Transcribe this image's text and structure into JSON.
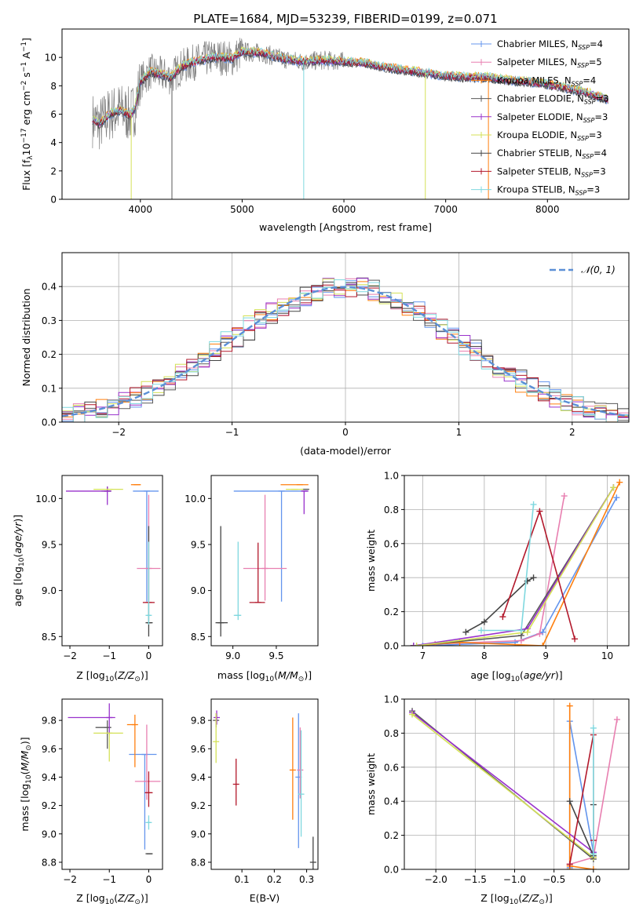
{
  "figure": {
    "title": "PLATE=1684, MJD=53239, FIBERID=0199, z=0.071"
  },
  "colors": {
    "Chabrier MILES": "#6495ed",
    "Salpeter MILES": "#e87fb0",
    "Kroupa MILES": "#ff7f0e",
    "Chabrier ELODIE": "#5a5a5a",
    "Salpeter ELODIE": "#9932cc",
    "Kroupa ELODIE": "#d4e157",
    "Chabrier STELIB": "#444444",
    "Salpeter STELIB": "#b2182b",
    "Kroupa STELIB": "#7fd8df",
    "data": "#808080",
    "gaussian": "#5b8fd6",
    "grid": "#b0b0b0"
  },
  "chart_data": [
    {
      "id": "spectrum",
      "type": "line",
      "xlabel": "wavelength [Angstrom, rest frame]",
      "ylabel": "Flux [fλ10⁻¹⁷ erg cm⁻² s⁻¹ A⁻¹]",
      "xlim": [
        3230,
        8800
      ],
      "ylim": [
        0,
        12
      ],
      "xticks": [
        4000,
        5000,
        6000,
        7000,
        8000
      ],
      "yticks": [
        0,
        2,
        4,
        6,
        8,
        10
      ],
      "grid": false,
      "legend_position": "top-right",
      "legend": [
        {
          "model": "Chabrier MILES",
          "label": "Chabrier MILES, N",
          "nssp": "4"
        },
        {
          "model": "Salpeter MILES",
          "label": "Salpeter MILES, N",
          "nssp": "5"
        },
        {
          "model": "Kroupa MILES",
          "label": "Kroupa MILES, N",
          "nssp": "4"
        },
        {
          "model": "Chabrier ELODIE",
          "label": "Chabrier ELODIE, N",
          "nssp": "3"
        },
        {
          "model": "Salpeter ELODIE",
          "label": "Salpeter ELODIE, N",
          "nssp": "3"
        },
        {
          "model": "Kroupa ELODIE",
          "label": "Kroupa ELODIE, N",
          "nssp": "3"
        },
        {
          "model": "Chabrier STELIB",
          "label": "Chabrier STELIB, N",
          "nssp": "4"
        },
        {
          "model": "Salpeter STELIB",
          "label": "Salpeter STELIB, N",
          "nssp": "3"
        },
        {
          "model": "Kroupa STELIB",
          "label": "Kroupa STELIB, N",
          "nssp": "3"
        }
      ],
      "continuum": [
        [
          3530,
          5.6
        ],
        [
          3600,
          5.3
        ],
        [
          3700,
          6.0
        ],
        [
          3800,
          6.3
        ],
        [
          3900,
          5.9
        ],
        [
          3950,
          6.5
        ],
        [
          4000,
          8.3
        ],
        [
          4100,
          9.0
        ],
        [
          4200,
          8.8
        ],
        [
          4300,
          8.6
        ],
        [
          4400,
          9.3
        ],
        [
          4500,
          9.6
        ],
        [
          4600,
          9.8
        ],
        [
          4700,
          10.0
        ],
        [
          4800,
          10.0
        ],
        [
          4900,
          9.9
        ],
        [
          5000,
          10.4
        ],
        [
          5200,
          10.3
        ],
        [
          5400,
          9.9
        ],
        [
          5600,
          9.7
        ],
        [
          5800,
          9.8
        ],
        [
          6000,
          9.7
        ],
        [
          6200,
          9.6
        ],
        [
          6400,
          9.3
        ],
        [
          6600,
          9.1
        ],
        [
          6800,
          8.9
        ],
        [
          7000,
          8.7
        ],
        [
          7200,
          8.6
        ],
        [
          7400,
          8.6
        ],
        [
          7600,
          8.4
        ],
        [
          7800,
          8.3
        ],
        [
          8000,
          8.1
        ],
        [
          8200,
          7.8
        ],
        [
          8400,
          7.5
        ],
        [
          8600,
          7.0
        ]
      ]
    },
    {
      "id": "residuals",
      "type": "histogram",
      "xlabel": "(data-model)/error",
      "ylabel": "Normed distribution",
      "xlim": [
        -2.5,
        2.5
      ],
      "ylim": [
        0,
        0.5
      ],
      "xticks": [
        -2,
        -1,
        0,
        1,
        2
      ],
      "yticks": [
        0.0,
        0.1,
        0.2,
        0.3,
        0.4
      ],
      "grid": true,
      "legend_position": "top-right",
      "gaussian_label": "𝒩(0, 1)"
    },
    {
      "id": "age_vs_z",
      "type": "scatter",
      "xlabel": "Z [log₁₀(Z/Z⊙)]",
      "ylabel": "age  [log₁₀(age/yr)]",
      "xlim": [
        -2.2,
        0.35
      ],
      "ylim": [
        8.4,
        10.25
      ],
      "xticks": [
        -2,
        -1,
        0
      ],
      "yticks": [
        8.5,
        9.0,
        9.5,
        10.0
      ],
      "points": [
        {
          "model": "Chabrier MILES",
          "x": -0.05,
          "xerr": [
            0.35,
            0.3
          ],
          "y": 10.08,
          "yerr": [
            1.2,
            0.0
          ]
        },
        {
          "model": "Salpeter MILES",
          "x": 0.0,
          "xerr": [
            0.3,
            0.3
          ],
          "y": 9.24,
          "yerr": [
            0.35,
            0.8
          ]
        },
        {
          "model": "Kroupa MILES",
          "x": -0.3,
          "xerr": [
            0.15,
            0.1
          ],
          "y": 10.15,
          "yerr": [
            0.0,
            0.0
          ]
        },
        {
          "model": "Chabrier ELODIE",
          "x": -1.05,
          "xerr": [
            0.15,
            0.1
          ],
          "y": 10.08,
          "yerr": [
            0.0,
            0.05
          ]
        },
        {
          "model": "Salpeter ELODIE",
          "x": -1.05,
          "xerr": [
            1.05,
            0.1
          ],
          "y": 10.08,
          "yerr": [
            0.15,
            0.05
          ]
        },
        {
          "model": "Kroupa ELODIE",
          "x": -1.0,
          "xerr": [
            0.4,
            0.35
          ],
          "y": 10.1,
          "yerr": [
            0.0,
            0.0
          ]
        },
        {
          "model": "Chabrier STELIB",
          "x": 0.0,
          "xerr": [
            0.05,
            0.1
          ],
          "y": 8.65,
          "yerr": [
            0.15,
            1.05
          ]
        },
        {
          "model": "Salpeter STELIB",
          "x": 0.0,
          "xerr": [
            0.15,
            0.15
          ],
          "y": 8.87,
          "yerr": [
            0.0,
            0.0
          ]
        },
        {
          "model": "Kroupa STELIB",
          "x": 0.0,
          "xerr": [
            0.05,
            0.05
          ],
          "y": 8.73,
          "yerr": [
            0.1,
            0.8
          ]
        }
      ]
    },
    {
      "id": "age_vs_mass",
      "type": "scatter",
      "xlabel": "mass [log₁₀(M/M⊙)]",
      "ylabel": "",
      "xlim": [
        8.75,
        9.98
      ],
      "ylim": [
        8.4,
        10.25
      ],
      "xticks": [
        9.0,
        9.5
      ],
      "yticks": [
        8.5,
        9.0,
        9.5,
        10.0
      ],
      "points": [
        {
          "model": "Chabrier MILES",
          "x": 9.56,
          "xerr": [
            0.55,
            0.3
          ],
          "y": 10.08,
          "yerr": [
            1.2,
            0.0
          ]
        },
        {
          "model": "Salpeter MILES",
          "x": 9.37,
          "xerr": [
            0.25,
            0.25
          ],
          "y": 9.24,
          "yerr": [
            0.35,
            0.8
          ]
        },
        {
          "model": "Kroupa MILES",
          "x": 9.77,
          "xerr": [
            0.22,
            0.1
          ],
          "y": 10.15,
          "yerr": [
            0.0,
            0.0
          ]
        },
        {
          "model": "Chabrier ELODIE",
          "x": 9.83,
          "xerr": [
            0.02,
            0.05
          ],
          "y": 10.1,
          "yerr": [
            0.0,
            0.0
          ]
        },
        {
          "model": "Salpeter ELODIE",
          "x": 9.82,
          "xerr": [
            0.02,
            0.05
          ],
          "y": 10.08,
          "yerr": [
            0.25,
            0.0
          ]
        },
        {
          "model": "Kroupa ELODIE",
          "x": 9.71,
          "xerr": [
            0.1,
            0.1
          ],
          "y": 10.1,
          "yerr": [
            0.0,
            0.0
          ]
        },
        {
          "model": "Chabrier STELIB",
          "x": 8.86,
          "xerr": [
            0.06,
            0.08
          ],
          "y": 8.65,
          "yerr": [
            0.15,
            1.05
          ]
        },
        {
          "model": "Salpeter STELIB",
          "x": 9.29,
          "xerr": [
            0.1,
            0.08
          ],
          "y": 8.87,
          "yerr": [
            0.0,
            0.65
          ]
        },
        {
          "model": "Kroupa STELIB",
          "x": 9.06,
          "xerr": [
            0.05,
            0.03
          ],
          "y": 8.73,
          "yerr": [
            0.05,
            0.8
          ]
        }
      ]
    },
    {
      "id": "weight_vs_age",
      "type": "line",
      "xlabel": "age  [log₁₀(age/yr)]",
      "ylabel": "mass weight",
      "xlim": [
        6.7,
        10.35
      ],
      "ylim": [
        0,
        1.0
      ],
      "xticks": [
        7,
        8,
        9,
        10
      ],
      "yticks": [
        0.0,
        0.2,
        0.4,
        0.6,
        0.8,
        1.0
      ],
      "grid": true,
      "series": [
        {
          "model": "Chabrier MILES",
          "x": [
            7.0,
            8.5,
            8.95,
            10.15
          ],
          "y": [
            0.0,
            0.02,
            0.08,
            0.87
          ]
        },
        {
          "model": "Salpeter MILES",
          "x": [
            7.2,
            8.6,
            8.9,
            9.3
          ],
          "y": [
            0.01,
            0.03,
            0.07,
            0.88
          ]
        },
        {
          "model": "Kroupa MILES",
          "x": [
            6.85,
            7.6,
            8.95,
            10.2
          ],
          "y": [
            0.0,
            0.02,
            0.0,
            0.96
          ]
        },
        {
          "model": "Chabrier ELODIE",
          "x": [
            6.85,
            8.6,
            10.1
          ],
          "y": [
            0.0,
            0.06,
            0.93
          ]
        },
        {
          "model": "Salpeter ELODIE",
          "x": [
            6.85,
            8.7,
            10.1
          ],
          "y": [
            0.0,
            0.1,
            0.93
          ]
        },
        {
          "model": "Kroupa ELODIE",
          "x": [
            6.9,
            8.7,
            10.1
          ],
          "y": [
            0.0,
            0.08,
            0.93
          ]
        },
        {
          "model": "Chabrier STELIB",
          "x": [
            7.7,
            8.0,
            8.7,
            8.8
          ],
          "y": [
            0.08,
            0.14,
            0.38,
            0.4
          ]
        },
        {
          "model": "Salpeter STELIB",
          "x": [
            8.3,
            8.9,
            9.47
          ],
          "y": [
            0.17,
            0.79,
            0.04
          ]
        },
        {
          "model": "Kroupa STELIB",
          "x": [
            7.95,
            8.6,
            8.8
          ],
          "y": [
            0.09,
            0.09,
            0.83
          ]
        }
      ]
    },
    {
      "id": "mass_vs_z",
      "type": "scatter",
      "xlabel": "Z [log₁₀(Z/Z⊙)]",
      "ylabel": "mass [log₁₀(M/M⊙)]",
      "xlim": [
        -2.2,
        0.35
      ],
      "ylim": [
        8.75,
        9.95
      ],
      "xticks": [
        -2,
        -1,
        0
      ],
      "yticks": [
        8.8,
        9.0,
        9.2,
        9.4,
        9.6,
        9.8
      ],
      "points": [
        {
          "model": "Chabrier MILES",
          "x": -0.1,
          "xerr": [
            0.4,
            0.3
          ],
          "y": 9.56,
          "yerr": [
            0.67,
            0.0
          ]
        },
        {
          "model": "Salpeter MILES",
          "x": -0.05,
          "xerr": [
            0.3,
            0.35
          ],
          "y": 9.37,
          "yerr": [
            0.13,
            0.4
          ]
        },
        {
          "model": "Kroupa MILES",
          "x": -0.35,
          "xerr": [
            0.2,
            0.0
          ],
          "y": 9.77,
          "yerr": [
            0.3,
            0.07
          ]
        },
        {
          "model": "Chabrier ELODIE",
          "x": -1.05,
          "xerr": [
            0.3,
            0.1
          ],
          "y": 9.75,
          "yerr": [
            0.15,
            0.05
          ]
        },
        {
          "model": "Salpeter ELODIE",
          "x": -1.0,
          "xerr": [
            1.05,
            0.15
          ],
          "y": 9.82,
          "yerr": [
            0.12,
            0.1
          ]
        },
        {
          "model": "Kroupa ELODIE",
          "x": -1.0,
          "xerr": [
            0.4,
            0.35
          ],
          "y": 9.71,
          "yerr": [
            0.2,
            0.0
          ]
        },
        {
          "model": "Chabrier STELIB",
          "x": 0.0,
          "xerr": [
            0.05,
            0.1
          ],
          "y": 8.86,
          "yerr": [
            0.0,
            0.0
          ]
        },
        {
          "model": "Salpeter STELIB",
          "x": 0.0,
          "xerr": [
            0.1,
            0.1
          ],
          "y": 9.29,
          "yerr": [
            0.1,
            0.15
          ]
        },
        {
          "model": "Kroupa STELIB",
          "x": 0.0,
          "xerr": [
            0.05,
            0.05
          ],
          "y": 9.08,
          "yerr": [
            0.05,
            0.05
          ]
        }
      ]
    },
    {
      "id": "mass_vs_ebv",
      "type": "scatter",
      "xlabel": "E(B-V)",
      "ylabel": "",
      "xlim": [
        0.005,
        0.335
      ],
      "ylim": [
        8.75,
        9.95
      ],
      "xticks": [
        0.1,
        0.2,
        0.3
      ],
      "yticks": [
        8.8,
        9.0,
        9.2,
        9.4,
        9.6,
        9.8
      ],
      "points": [
        {
          "model": "Chabrier MILES",
          "x": 0.275,
          "xerr": [
            0.0,
            0.0
          ],
          "y": 9.4,
          "yerr": [
            0.5,
            0.45
          ]
        },
        {
          "model": "Salpeter MILES",
          "x": 0.28,
          "xerr": [
            0.0,
            0.0
          ],
          "y": 9.45,
          "yerr": [
            0.2,
            0.3
          ]
        },
        {
          "model": "Kroupa MILES",
          "x": 0.257,
          "xerr": [
            0.0,
            0.0
          ],
          "y": 9.45,
          "yerr": [
            0.35,
            0.37
          ]
        },
        {
          "model": "Chabrier ELODIE",
          "x": 0.02,
          "xerr": [
            0.0,
            0.0
          ],
          "y": 9.8,
          "yerr": [
            0.05,
            0.05
          ]
        },
        {
          "model": "Salpeter ELODIE",
          "x": 0.022,
          "xerr": [
            0.0,
            0.0
          ],
          "y": 9.82,
          "yerr": [
            0.05,
            0.05
          ]
        },
        {
          "model": "Kroupa ELODIE",
          "x": 0.02,
          "xerr": [
            0.0,
            0.0
          ],
          "y": 9.65,
          "yerr": [
            0.15,
            0.2
          ]
        },
        {
          "model": "Chabrier STELIB",
          "x": 0.32,
          "xerr": [
            0.0,
            0.0
          ],
          "y": 8.8,
          "yerr": [
            0.05,
            0.18
          ]
        },
        {
          "model": "Salpeter STELIB",
          "x": 0.082,
          "xerr": [
            0.0,
            0.0
          ],
          "y": 9.35,
          "yerr": [
            0.15,
            0.18
          ]
        },
        {
          "model": "Kroupa STELIB",
          "x": 0.283,
          "xerr": [
            0.0,
            0.0
          ],
          "y": 9.28,
          "yerr": [
            0.3,
            0.45
          ]
        }
      ]
    },
    {
      "id": "weight_vs_z",
      "type": "line",
      "xlabel": "Z [log₁₀(Z/Z⊙)]",
      "ylabel": "mass weight",
      "xlim": [
        -2.4,
        0.45
      ],
      "ylim": [
        0,
        1.0
      ],
      "xticks": [
        -2.0,
        -1.5,
        -1.0,
        -0.5,
        0.0
      ],
      "yticks": [
        0.0,
        0.2,
        0.4,
        0.6,
        0.8,
        1.0
      ],
      "grid": true,
      "series": [
        {
          "model": "Chabrier MILES",
          "x": [
            -0.3,
            -0.3,
            0.0
          ],
          "y": [
            0.01,
            0.87,
            0.1
          ]
        },
        {
          "model": "Salpeter MILES",
          "x": [
            -0.3,
            0.0,
            0.3
          ],
          "y": [
            0.03,
            0.07,
            0.88
          ]
        },
        {
          "model": "Kroupa MILES",
          "x": [
            -0.3,
            -0.3,
            -0.3,
            0.0
          ],
          "y": [
            0.0,
            0.96,
            0.02,
            0.0
          ]
        },
        {
          "model": "Chabrier ELODIE",
          "x": [
            -2.3,
            0.0
          ],
          "y": [
            0.93,
            0.06
          ]
        },
        {
          "model": "Salpeter ELODIE",
          "x": [
            -2.3,
            0.0
          ],
          "y": [
            0.92,
            0.1
          ]
        },
        {
          "model": "Kroupa ELODIE",
          "x": [
            -2.3,
            0.0
          ],
          "y": [
            0.91,
            0.07
          ]
        },
        {
          "model": "Chabrier STELIB",
          "x": [
            -0.3,
            0.0,
            0.0
          ],
          "y": [
            0.4,
            0.08,
            0.38
          ]
        },
        {
          "model": "Salpeter STELIB",
          "x": [
            -0.3,
            0.0,
            0.0
          ],
          "y": [
            0.03,
            0.79,
            0.17
          ]
        },
        {
          "model": "Kroupa STELIB",
          "x": [
            0.0,
            0.0,
            0.0
          ],
          "y": [
            0.83,
            0.09,
            0.09
          ]
        }
      ]
    }
  ]
}
